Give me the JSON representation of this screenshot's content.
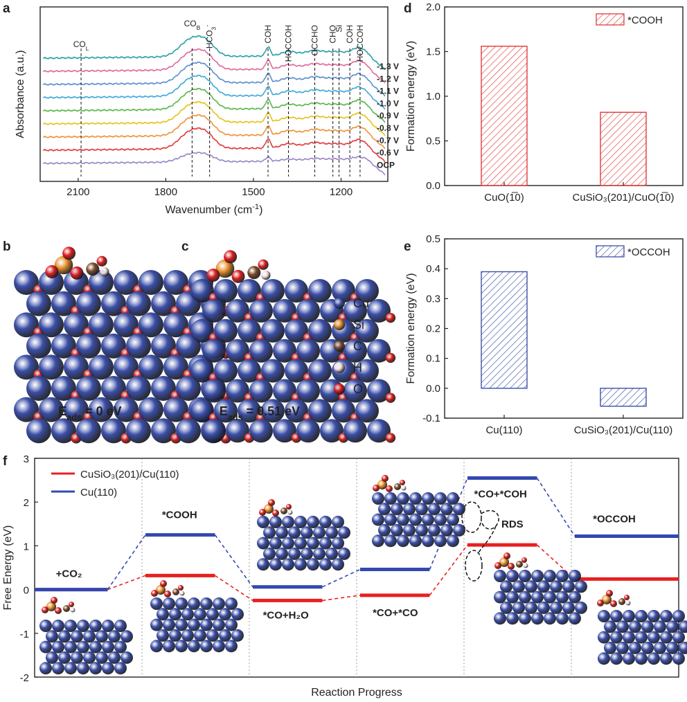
{
  "panels": {
    "a": "a",
    "b": "b",
    "c": "c",
    "d": "d",
    "e": "e",
    "f": "f"
  },
  "panel_a": {
    "type": "line",
    "xlabel": "Wavenumber (cm",
    "xlabel_sup": "-1",
    "xlabel_end": ")",
    "ylabel": "Absorbance (a.u.)",
    "xlim": [
      2230,
      1040
    ],
    "xticks": [
      "2100",
      "1800",
      "1500",
      "1200"
    ],
    "xtick_values": [
      2100,
      1800,
      1500,
      1200
    ],
    "peaks": [
      {
        "label": "CO",
        "sub": "L",
        "sup": "",
        "x": 2090
      },
      {
        "label": "CO",
        "sub": "B",
        "sup": "",
        "x": 1710
      },
      {
        "label": "HCO",
        "sub": "3",
        "sup": "-",
        "x": 1650
      },
      {
        "label": "COH",
        "sub": "",
        "sup": "",
        "x": 1450
      },
      {
        "label": "HOCCOH",
        "sub": "",
        "sup": "",
        "x": 1380
      },
      {
        "label": "OCCHO",
        "sub": "",
        "sup": "",
        "x": 1290
      },
      {
        "label": "CHO",
        "sub": "",
        "sup": "",
        "x": 1228
      },
      {
        "label": "Si",
        "sub": "",
        "sup": "",
        "x": 1207
      },
      {
        "label": "COH",
        "sub": "",
        "sup": "",
        "x": 1170
      },
      {
        "label": "HOCCOH",
        "sub": "",
        "sup": "",
        "x": 1135
      }
    ],
    "series": [
      {
        "name": "-1.3 V",
        "color": "#2aa0a6"
      },
      {
        "name": "-1.2 V",
        "color": "#e0699b"
      },
      {
        "name": "-1.1 V",
        "color": "#5b8ed0"
      },
      {
        "name": "-1.0 V",
        "color": "#3fa9d8"
      },
      {
        "name": "-0.9 V",
        "color": "#58b848"
      },
      {
        "name": "-0.8 V",
        "color": "#e6c21a"
      },
      {
        "name": "-0.7 V",
        "color": "#f0913a"
      },
      {
        "name": "-0.6 V",
        "color": "#e03a3a"
      },
      {
        "name": "OCP",
        "color": "#9a86c8"
      }
    ]
  },
  "panel_b": {
    "energy_label": "E",
    "energy_sub": "ads",
    "energy_value": " = 0 eV"
  },
  "panel_c": {
    "energy_label": "E",
    "energy_sub": "ads",
    "energy_value": " = 0.51 eV"
  },
  "atom_legend": [
    {
      "name": "Cu",
      "color": "#3b4fa8"
    },
    {
      "name": "Si",
      "color": "#e8902a"
    },
    {
      "name": "C",
      "color": "#7a4a2a"
    },
    {
      "name": "H",
      "color": "#f2dede"
    },
    {
      "name": "O",
      "color": "#e02020"
    }
  ],
  "panel_d": {
    "type": "bar",
    "ylabel": "Formation energy (eV)",
    "ylim": [
      0,
      2.0
    ],
    "yticks": [
      "0.0",
      "0.5",
      "1.0",
      "1.5",
      "2.0"
    ],
    "ytick_values": [
      0,
      0.5,
      1.0,
      1.5,
      2.0
    ],
    "legend": "*COOH",
    "color": "#e03a3a",
    "categories": [
      "CuO(1̅0)",
      "CuSiO₃(201)/CuO(1̅0)"
    ],
    "values": [
      1.56,
      0.82
    ]
  },
  "panel_e": {
    "type": "bar",
    "ylabel": "Formation energy (eV)",
    "ylim": [
      -0.1,
      0.5
    ],
    "yticks": [
      "-0.1",
      "0.0",
      "0.1",
      "0.2",
      "0.3",
      "0.4",
      "0.5"
    ],
    "ytick_values": [
      -0.1,
      0,
      0.1,
      0.2,
      0.3,
      0.4,
      0.5
    ],
    "legend": "*OCCOH",
    "color": "#3b4fa8",
    "categories": [
      "Cu(110)",
      "CuSiO₃(201)/Cu(110)"
    ],
    "values": [
      0.39,
      -0.06
    ]
  },
  "panel_f": {
    "type": "line",
    "xlabel": "Reaction Progress",
    "ylabel": "Free Energy (eV)",
    "ylim": [
      -2,
      3
    ],
    "yticks": [
      "-2",
      "-1",
      "0",
      "1",
      "2",
      "3"
    ],
    "ytick_values": [
      -2,
      -1,
      0,
      1,
      2,
      3
    ],
    "steps": [
      "+CO₂",
      "*COOH",
      "*CO+H₂O",
      "*CO+*CO",
      "*CO+*COH",
      "*OCCOH"
    ],
    "series": [
      {
        "name": "CuSiO₃(201)/Cu(110)",
        "color": "#e82020",
        "values": [
          0,
          0.32,
          -0.25,
          -0.13,
          1.02,
          0.24
        ]
      },
      {
        "name": "Cu(110)",
        "color": "#3348b0",
        "values": [
          0,
          1.25,
          0.06,
          0.46,
          2.55,
          1.22
        ]
      }
    ],
    "annotation": "RDS"
  }
}
